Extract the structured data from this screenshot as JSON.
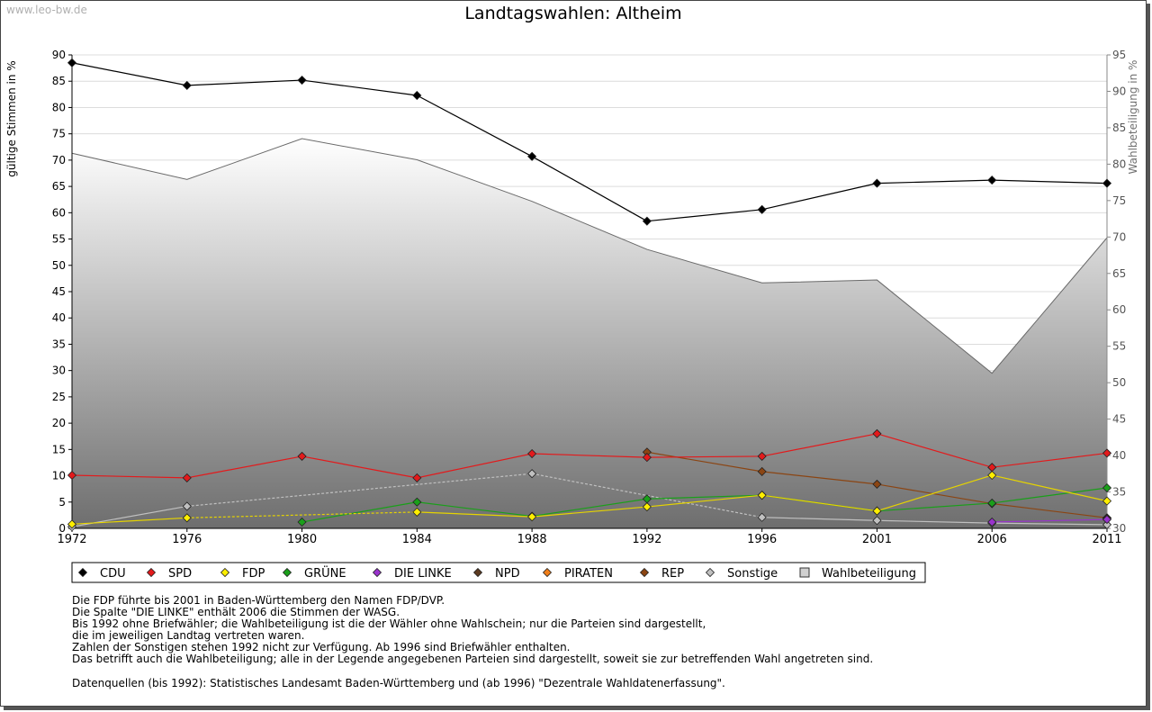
{
  "watermark": "www.leo-bw.de",
  "notes": [
    "Die FDP führte bis 2001 in Baden-Württemberg den Namen FDP/DVP.",
    "Die Spalte \"DIE LINKE\" enthält 2006 die Stimmen der WASG.",
    "Bis 1992 ohne Briefwähler; die Wahlbeteiligung ist die der Wähler ohne Wahlschein; nur die Parteien sind dargestellt,",
    "die im jeweiligen Landtag vertreten waren.",
    "Zahlen der Sonstigen stehen 1992 nicht zur Verfügung. Ab 1996 sind Briefwähler enthalten.",
    "Das betrifft auch die Wahlbeteiligung; alle in der Legende angegebenen Parteien sind dargestellt, soweit sie zur betreffenden Wahl angetreten sind."
  ],
  "sources": "Datenquellen (bis 1992): Statistisches Landesamt Baden-Württemberg und (ab 1996) \"Dezentrale Wahldatenerfassung\".",
  "chart_data": {
    "type": "line",
    "title": "Landtagswahlen: Altheim",
    "ylabel": "gültige Stimmen in %",
    "y2label": "Wahlbeteiligung in %",
    "x": [
      "1972",
      "1976",
      "1980",
      "1984",
      "1988",
      "1992",
      "1996",
      "2001",
      "2006",
      "2011"
    ],
    "ylim": [
      0,
      90
    ],
    "y2lim": [
      30,
      95
    ],
    "yticks": [
      0,
      5,
      10,
      15,
      20,
      25,
      30,
      35,
      40,
      45,
      50,
      55,
      60,
      65,
      70,
      75,
      80,
      85,
      90
    ],
    "y2ticks": [
      30,
      35,
      40,
      45,
      50,
      55,
      60,
      65,
      70,
      75,
      80,
      85,
      90,
      95
    ],
    "grid": true,
    "legend_position": "bottom",
    "series": [
      {
        "name": "CDU",
        "color": "#000000",
        "values": [
          88.5,
          84.2,
          85.2,
          82.3,
          70.7,
          58.4,
          60.6,
          65.6,
          66.2,
          65.6
        ]
      },
      {
        "name": "SPD",
        "color": "#e31a1c",
        "values": [
          10.1,
          9.6,
          13.7,
          9.6,
          14.2,
          13.5,
          13.7,
          18.0,
          11.6,
          14.3
        ]
      },
      {
        "name": "FDP",
        "color": "#ffee00",
        "values": [
          0.8,
          2.0,
          null,
          3.1,
          2.2,
          4.1,
          6.3,
          3.3,
          10.1,
          5.2
        ]
      },
      {
        "name": "GRÜNE",
        "color": "#1a9f1a",
        "values": [
          null,
          null,
          1.2,
          5.0,
          2.3,
          5.6,
          6.3,
          3.3,
          4.8,
          7.7
        ]
      },
      {
        "name": "DIE LINKE",
        "color": "#9933cc",
        "values": [
          null,
          null,
          null,
          null,
          null,
          null,
          null,
          null,
          1.2,
          1.7
        ]
      },
      {
        "name": "NPD",
        "color": "#5c3a21",
        "values": [
          null,
          null,
          null,
          null,
          null,
          null,
          null,
          null,
          null,
          1.9
        ]
      },
      {
        "name": "PIRATEN",
        "color": "#f07e1a",
        "values": [
          null,
          null,
          null,
          null,
          null,
          null,
          null,
          null,
          null,
          null
        ]
      },
      {
        "name": "REP",
        "color": "#8b4513",
        "values": [
          null,
          null,
          null,
          null,
          null,
          14.5,
          10.8,
          8.4,
          4.7,
          2.0
        ]
      },
      {
        "name": "Sonstige",
        "color": "#c0c0c0",
        "values": [
          0.3,
          4.2,
          null,
          null,
          10.4,
          null,
          2.1,
          1.5,
          1.0,
          0.7
        ]
      }
    ],
    "turnout": {
      "name": "Wahlbeteiligung",
      "axis": "right",
      "values": [
        81.5,
        77.9,
        83.5,
        80.6,
        74.9,
        68.3,
        63.7,
        64.1,
        51.3,
        69.9
      ]
    }
  }
}
